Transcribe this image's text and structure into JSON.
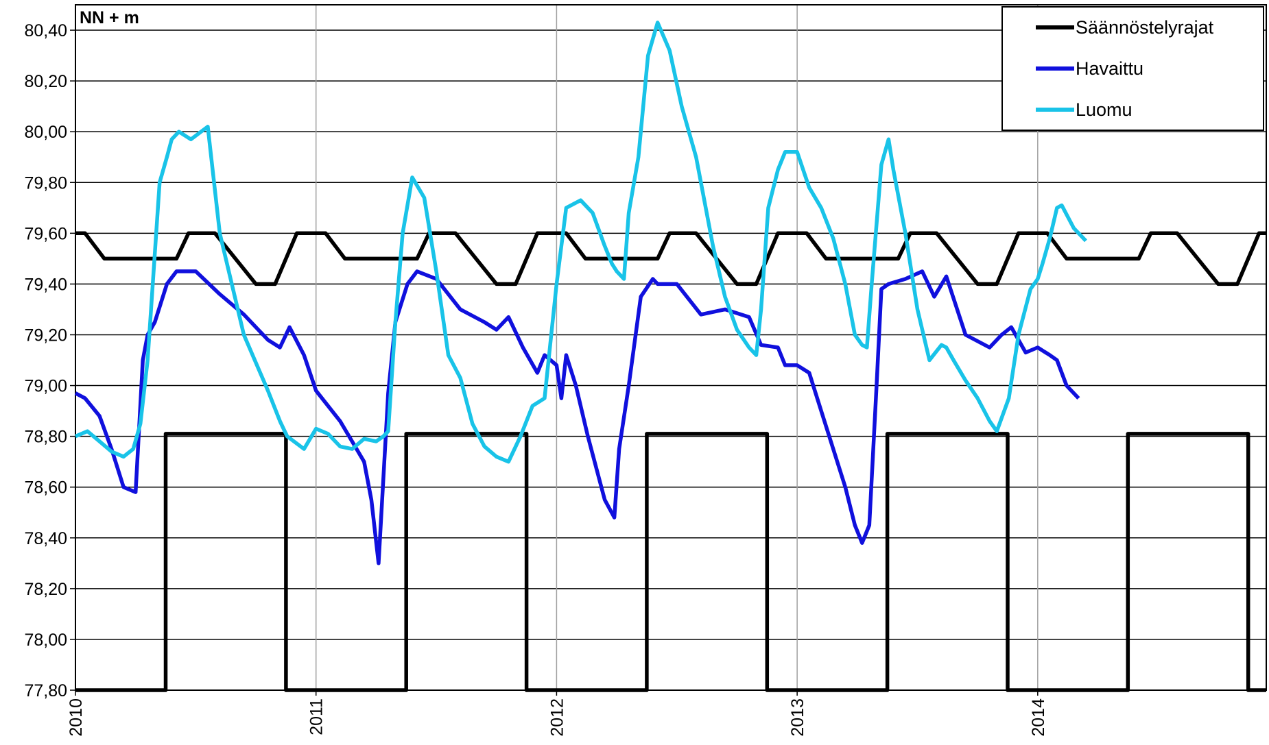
{
  "chart_data": {
    "type": "line",
    "unit_label": "NN + m",
    "x_axis": {
      "min": 2010.0,
      "max": 2014.95,
      "ticks": [
        2010,
        2011,
        2012,
        2013,
        2014
      ],
      "tick_labels": [
        "2010",
        "2011",
        "2012",
        "2013",
        "2014"
      ]
    },
    "y_axis": {
      "min": 77.8,
      "max": 80.5,
      "grid": true,
      "ticks": [
        77.8,
        78.0,
        78.2,
        78.4,
        78.6,
        78.8,
        79.0,
        79.2,
        79.4,
        79.6,
        79.8,
        80.0,
        80.2,
        80.4
      ],
      "tick_labels": [
        "77,80",
        "78,00",
        "78,20",
        "78,40",
        "78,60",
        "78,80",
        "79,00",
        "79,20",
        "79,40",
        "79,60",
        "79,80",
        "80,00",
        "80,20",
        "80,40"
      ]
    },
    "legend": {
      "position": "top-right",
      "entries": [
        "Säännöstelyrajat",
        "Havaittu",
        "Luomu"
      ]
    },
    "series": [
      {
        "name": "Säännöstelyrajat",
        "color": "#000000",
        "role": "upper-limit",
        "x": [
          2010.0,
          2010.04,
          2010.12,
          2010.42,
          2010.47,
          2010.58,
          2010.75,
          2010.83,
          2010.92,
          2011.04,
          2011.12,
          2011.42,
          2011.47,
          2011.58,
          2011.75,
          2011.83,
          2011.92,
          2012.04,
          2012.12,
          2012.42,
          2012.47,
          2012.58,
          2012.75,
          2012.83,
          2012.92,
          2013.04,
          2013.12,
          2013.42,
          2013.47,
          2013.58,
          2013.75,
          2013.83,
          2013.92,
          2014.04,
          2014.12,
          2014.42,
          2014.47,
          2014.58,
          2014.75,
          2014.83,
          2014.92,
          2014.95
        ],
        "y": [
          79.6,
          79.6,
          79.5,
          79.5,
          79.6,
          79.6,
          79.4,
          79.4,
          79.6,
          79.6,
          79.5,
          79.5,
          79.6,
          79.6,
          79.4,
          79.4,
          79.6,
          79.6,
          79.5,
          79.5,
          79.6,
          79.6,
          79.4,
          79.4,
          79.6,
          79.6,
          79.5,
          79.5,
          79.6,
          79.6,
          79.4,
          79.4,
          79.6,
          79.6,
          79.5,
          79.5,
          79.6,
          79.6,
          79.4,
          79.4,
          79.6,
          79.6
        ]
      },
      {
        "name": "Säännöstelyrajat",
        "color": "#000000",
        "role": "lower-limit",
        "x": [
          2010.0,
          2010.375,
          2010.375,
          2010.875,
          2010.875,
          2011.375,
          2011.375,
          2011.875,
          2011.875,
          2012.375,
          2012.375,
          2012.875,
          2012.875,
          2013.375,
          2013.375,
          2013.875,
          2013.875,
          2014.375,
          2014.375,
          2014.875,
          2014.875,
          2014.95
        ],
        "y": [
          77.8,
          77.8,
          78.81,
          78.81,
          77.8,
          77.8,
          78.81,
          78.81,
          77.8,
          77.8,
          78.81,
          78.81,
          77.8,
          77.8,
          78.81,
          78.81,
          77.8,
          77.8,
          78.81,
          78.81,
          77.8,
          77.8
        ]
      },
      {
        "name": "Havaittu",
        "color": "#1010dd",
        "x": [
          2010.0,
          2010.04,
          2010.1,
          2010.15,
          2010.2,
          2010.25,
          2010.28,
          2010.3,
          2010.33,
          2010.38,
          2010.42,
          2010.5,
          2010.6,
          2010.7,
          2010.8,
          2010.85,
          2010.89,
          2010.95,
          2011.0,
          2011.1,
          2011.15,
          2011.2,
          2011.23,
          2011.26,
          2011.3,
          2011.33,
          2011.38,
          2011.42,
          2011.5,
          2011.6,
          2011.7,
          2011.75,
          2011.8,
          2011.86,
          2011.92,
          2011.95,
          2012.0,
          2012.02,
          2012.04,
          2012.08,
          2012.13,
          2012.2,
          2012.24,
          2012.26,
          2012.3,
          2012.35,
          2012.4,
          2012.42,
          2012.5,
          2012.6,
          2012.7,
          2012.8,
          2012.85,
          2012.92,
          2012.95,
          2013.0,
          2013.05,
          2013.1,
          2013.2,
          2013.24,
          2013.27,
          2013.3,
          2013.33,
          2013.35,
          2013.38,
          2013.45,
          2013.52,
          2013.57,
          2013.62,
          2013.7,
          2013.8,
          2013.85,
          2013.89,
          2013.95,
          2014.0,
          2014.05,
          2014.08,
          2014.12,
          2014.17
        ],
        "y": [
          78.97,
          78.95,
          78.88,
          78.75,
          78.6,
          78.58,
          79.1,
          79.2,
          79.25,
          79.4,
          79.45,
          79.45,
          79.36,
          79.28,
          79.18,
          79.15,
          79.23,
          79.12,
          78.98,
          78.86,
          78.78,
          78.7,
          78.55,
          78.3,
          78.97,
          79.25,
          79.4,
          79.45,
          79.42,
          79.3,
          79.25,
          79.22,
          79.27,
          79.15,
          79.05,
          79.12,
          79.08,
          78.95,
          79.12,
          79.0,
          78.8,
          78.55,
          78.48,
          78.75,
          79.0,
          79.35,
          79.42,
          79.4,
          79.4,
          79.28,
          79.3,
          79.27,
          79.16,
          79.15,
          79.08,
          79.08,
          79.05,
          78.9,
          78.6,
          78.45,
          78.38,
          78.45,
          79.0,
          79.38,
          79.4,
          79.42,
          79.45,
          79.35,
          79.43,
          79.2,
          79.15,
          79.2,
          79.23,
          79.13,
          79.15,
          79.12,
          79.1,
          79.0,
          78.95
        ]
      },
      {
        "name": "Luomu",
        "color": "#19c3e8",
        "x": [
          2010.0,
          2010.05,
          2010.1,
          2010.15,
          2010.2,
          2010.24,
          2010.27,
          2010.3,
          2010.35,
          2010.38,
          2010.4,
          2010.43,
          2010.48,
          2010.55,
          2010.6,
          2010.7,
          2010.8,
          2010.85,
          2010.88,
          2010.95,
          2011.0,
          2011.05,
          2011.1,
          2011.15,
          2011.2,
          2011.25,
          2011.28,
          2011.3,
          2011.33,
          2011.36,
          2011.4,
          2011.45,
          2011.5,
          2011.55,
          2011.6,
          2011.65,
          2011.7,
          2011.75,
          2011.8,
          2011.85,
          2011.9,
          2011.95,
          2012.0,
          2012.04,
          2012.1,
          2012.15,
          2012.2,
          2012.23,
          2012.25,
          2012.28,
          2012.3,
          2012.34,
          2012.38,
          2012.42,
          2012.47,
          2012.52,
          2012.58,
          2012.65,
          2012.7,
          2012.75,
          2012.8,
          2012.83,
          2012.85,
          2012.88,
          2012.92,
          2012.95,
          2013.0,
          2013.05,
          2013.1,
          2013.15,
          2013.2,
          2013.24,
          2013.27,
          2013.29,
          2013.31,
          2013.35,
          2013.38,
          2013.4,
          2013.45,
          2013.5,
          2013.55,
          2013.6,
          2013.62,
          2013.65,
          2013.7,
          2013.75,
          2013.8,
          2013.83,
          2013.88,
          2013.92,
          2013.97,
          2014.0,
          2014.02,
          2014.05,
          2014.08,
          2014.1,
          2014.15,
          2014.2
        ],
        "y": [
          78.8,
          78.82,
          78.78,
          78.74,
          78.72,
          78.75,
          78.85,
          79.1,
          79.8,
          79.9,
          79.97,
          80.0,
          79.97,
          80.02,
          79.6,
          79.2,
          78.98,
          78.86,
          78.8,
          78.75,
          78.83,
          78.81,
          78.76,
          78.75,
          78.79,
          78.78,
          78.8,
          78.82,
          79.25,
          79.6,
          79.82,
          79.74,
          79.45,
          79.12,
          79.03,
          78.85,
          78.76,
          78.72,
          78.7,
          78.8,
          78.92,
          78.95,
          79.4,
          79.7,
          79.73,
          79.68,
          79.55,
          79.48,
          79.45,
          79.42,
          79.68,
          79.9,
          80.3,
          80.43,
          80.32,
          80.1,
          79.9,
          79.55,
          79.35,
          79.22,
          79.15,
          79.12,
          79.3,
          79.7,
          79.85,
          79.92,
          79.92,
          79.78,
          79.7,
          79.58,
          79.4,
          79.2,
          79.16,
          79.15,
          79.4,
          79.87,
          79.97,
          79.85,
          79.6,
          79.3,
          79.1,
          79.16,
          79.15,
          79.1,
          79.02,
          78.95,
          78.86,
          78.82,
          78.95,
          79.2,
          79.38,
          79.42,
          79.48,
          79.58,
          79.7,
          79.71,
          79.62,
          79.57
        ]
      }
    ]
  }
}
